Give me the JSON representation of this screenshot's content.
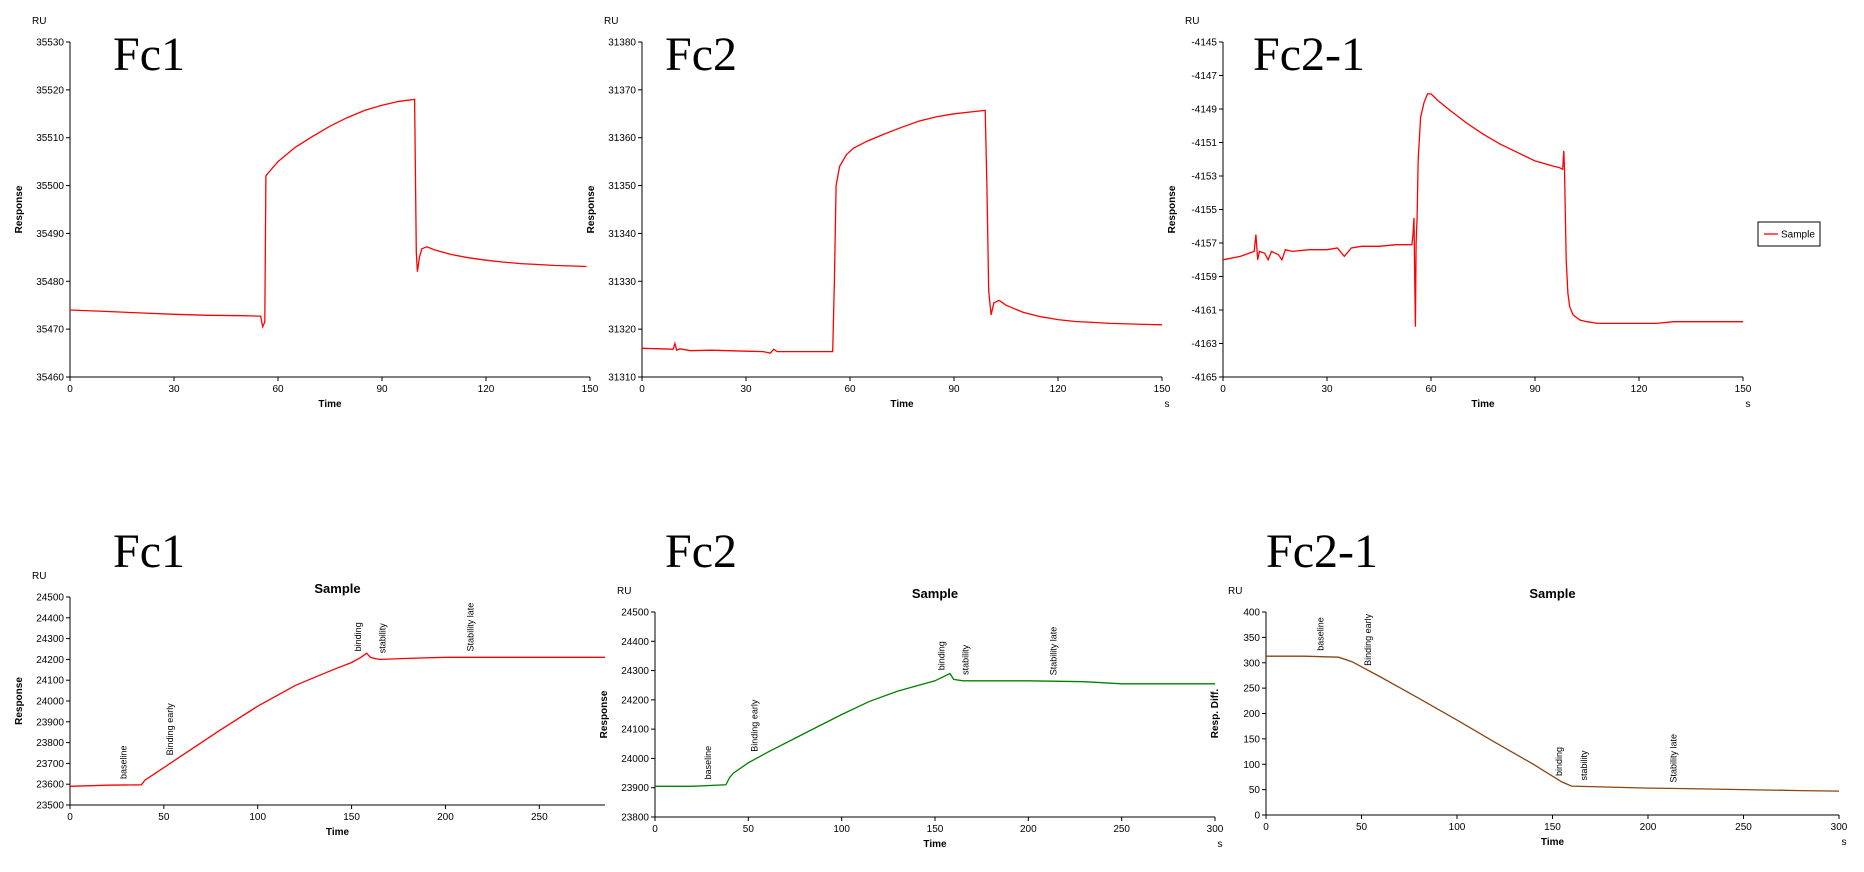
{
  "chart_data": [
    {
      "type": "line",
      "panel_label": "Fc1",
      "unit_label": "RU",
      "xlabel": "Time",
      "ylabel": "Response",
      "xlim": [
        0,
        150
      ],
      "ylim": [
        35460,
        35530
      ],
      "xticks": [
        0,
        30,
        60,
        90,
        120,
        150
      ],
      "yticks": [
        35460,
        35470,
        35480,
        35490,
        35500,
        35510,
        35520,
        35530
      ],
      "color": "#ff0000",
      "series": [
        {
          "x": [
            0,
            10,
            20,
            30,
            40,
            50,
            55,
            55.6,
            56.2,
            56.5,
            57,
            60,
            65,
            70,
            75,
            80,
            85,
            90,
            95,
            99.4,
            99.6,
            99.9,
            100.2,
            100.8,
            101.5,
            103,
            105,
            110,
            115,
            120,
            125,
            130,
            135,
            140,
            145,
            149
          ],
          "y": [
            35474,
            35473.7,
            35473.4,
            35473.1,
            35472.9,
            35472.8,
            35472.7,
            35470.5,
            35471.5,
            35502,
            35502.5,
            35505,
            35508,
            35510.3,
            35512.4,
            35514.2,
            35515.7,
            35516.8,
            35517.6,
            35518,
            35505,
            35486,
            35482,
            35485,
            35486.8,
            35487.2,
            35486.6,
            35485.6,
            35484.9,
            35484.4,
            35484,
            35483.7,
            35483.5,
            35483.3,
            35483.2,
            35483.1
          ]
        }
      ]
    },
    {
      "type": "line",
      "panel_label": "Fc2",
      "unit_label": "RU",
      "xlabel": "Time",
      "x_unit": "s",
      "ylabel": "Response",
      "xlim": [
        0,
        150
      ],
      "ylim": [
        31310,
        31380
      ],
      "xticks": [
        0,
        30,
        60,
        90,
        120,
        150
      ],
      "yticks": [
        31310,
        31320,
        31330,
        31340,
        31350,
        31360,
        31370,
        31380
      ],
      "color": "#ff0000",
      "series": [
        {
          "x": [
            0,
            5,
            9,
            9.5,
            10,
            11,
            14,
            20,
            25,
            30,
            35,
            37,
            38,
            39,
            45,
            50,
            55,
            55.5,
            56,
            57,
            59,
            61,
            65,
            70,
            75,
            80,
            85,
            90,
            95,
            99,
            99.5,
            100,
            100.7,
            101.5,
            103,
            105,
            110,
            115,
            120,
            125,
            130,
            135,
            140,
            145,
            150
          ],
          "y": [
            31316,
            31315.9,
            31315.8,
            31317,
            31315.6,
            31315.9,
            31315.5,
            31315.6,
            31315.5,
            31315.4,
            31315.3,
            31315,
            31315.8,
            31315.3,
            31315.3,
            31315.3,
            31315.3,
            31330,
            31350,
            31354,
            31356.5,
            31357.8,
            31359.3,
            31360.8,
            31362.2,
            31363.5,
            31364.4,
            31365,
            31365.4,
            31365.7,
            31350,
            31328,
            31323,
            31325.5,
            31326,
            31325,
            31323.5,
            31322.6,
            31322,
            31321.6,
            31321.4,
            31321.2,
            31321.1,
            31321,
            31320.9
          ]
        }
      ]
    },
    {
      "type": "line",
      "panel_label": "Fc2-1",
      "unit_label": "RU",
      "xlabel": "Time",
      "x_unit": "s",
      "ylabel": "Response",
      "xlim": [
        0,
        150
      ],
      "ylim": [
        -4165,
        -4145
      ],
      "xticks": [
        0,
        30,
        60,
        90,
        120,
        150
      ],
      "yticks": [
        -4165,
        -4163,
        -4161,
        -4159,
        -4157,
        -4155,
        -4153,
        -4151,
        -4149,
        -4147,
        -4145
      ],
      "legend": {
        "label": "Sample",
        "position": "right"
      },
      "color": "#ff0000",
      "series": [
        {
          "name": "Sample",
          "x": [
            0,
            5,
            9,
            9.5,
            10,
            10.5,
            12,
            13,
            14,
            16,
            17,
            18,
            20,
            25,
            30,
            33,
            35,
            37,
            40,
            45,
            50,
            54.5,
            54.8,
            55.1,
            55.3,
            55.5,
            55.7,
            56,
            56.3,
            57,
            58,
            59,
            60,
            62,
            65,
            70,
            75,
            80,
            85,
            90,
            95,
            97,
            98,
            98.3,
            98.5,
            99,
            99.5,
            100,
            101,
            103,
            105,
            108,
            110,
            115,
            120,
            125,
            130,
            135,
            140,
            145,
            150
          ],
          "y": [
            -4158,
            -4157.8,
            -4157.5,
            -4156.5,
            -4158,
            -4157.5,
            -4157.6,
            -4158,
            -4157.5,
            -4157.7,
            -4158,
            -4157.4,
            -4157.5,
            -4157.4,
            -4157.4,
            -4157.3,
            -4157.8,
            -4157.3,
            -4157.2,
            -4157.2,
            -4157.1,
            -4157.1,
            -4156.5,
            -4155.5,
            -4159,
            -4162,
            -4157,
            -4155.5,
            -4152,
            -4149.5,
            -4148.6,
            -4148.1,
            -4148.1,
            -4148.5,
            -4149,
            -4149.8,
            -4150.5,
            -4151.1,
            -4151.6,
            -4152.1,
            -4152.4,
            -4152.5,
            -4152.6,
            -4151.5,
            -4152.6,
            -4158,
            -4160,
            -4160.8,
            -4161.3,
            -4161.6,
            -4161.7,
            -4161.8,
            -4161.8,
            -4161.8,
            -4161.8,
            -4161.8,
            -4161.7,
            -4161.7,
            -4161.7,
            -4161.7,
            -4161.7
          ]
        }
      ]
    },
    {
      "type": "line",
      "panel_label": "Fc1",
      "title": "Sample",
      "unit_label": "RU",
      "xlabel": "Time",
      "ylabel": "Response",
      "xlim": [
        0,
        285
      ],
      "ylim": [
        23500,
        24500
      ],
      "xticks": [
        0,
        50,
        100,
        150,
        200,
        250
      ],
      "yticks": [
        23500,
        23600,
        23700,
        23800,
        23900,
        24000,
        24100,
        24200,
        24300,
        24400,
        24500
      ],
      "annotations": [
        {
          "text": "baseline",
          "x": 30
        },
        {
          "text": "Binding early",
          "x": 55
        },
        {
          "text": "binding",
          "x": 155
        },
        {
          "text": "stability",
          "x": 168
        },
        {
          "text": "Stability late",
          "x": 215
        }
      ],
      "color": "#ff0000",
      "series": [
        {
          "x": [
            0,
            20,
            38,
            40,
            45,
            60,
            80,
            100,
            120,
            140,
            150,
            155,
            158,
            160,
            162,
            165,
            180,
            200,
            250,
            285
          ],
          "y": [
            23590,
            23595,
            23597,
            23620,
            23650,
            23740,
            23860,
            23975,
            24075,
            24150,
            24185,
            24210,
            24230,
            24210,
            24205,
            24200,
            24205,
            24210,
            24210,
            24210
          ]
        }
      ]
    },
    {
      "type": "line",
      "panel_label": "Fc2",
      "title": "Sample",
      "unit_label": "RU",
      "xlabel": "Time",
      "x_unit": "s",
      "ylabel": "Response",
      "xlim": [
        0,
        300
      ],
      "ylim": [
        23800,
        24500
      ],
      "xticks": [
        0,
        50,
        100,
        150,
        200,
        250,
        300
      ],
      "yticks": [
        23800,
        23900,
        24000,
        24100,
        24200,
        24300,
        24400,
        24500
      ],
      "annotations": [
        {
          "text": "baseline",
          "x": 30
        },
        {
          "text": "Binding early",
          "x": 55
        },
        {
          "text": "binding",
          "x": 155
        },
        {
          "text": "stability",
          "x": 168
        },
        {
          "text": "Stability late",
          "x": 215
        }
      ],
      "color": "#008000",
      "series": [
        {
          "x": [
            0,
            20,
            38,
            40,
            42,
            50,
            60,
            80,
            100,
            115,
            130,
            150,
            158,
            160,
            165,
            180,
            200,
            230,
            250,
            300
          ],
          "y": [
            23905,
            23905,
            23910,
            23935,
            23950,
            23985,
            24020,
            24085,
            24150,
            24195,
            24230,
            24265,
            24290,
            24270,
            24265,
            24265,
            24265,
            24262,
            24255,
            24255
          ]
        }
      ]
    },
    {
      "type": "line",
      "panel_label": "Fc2-1",
      "title": "Sample",
      "unit_label": "RU",
      "xlabel": "Time",
      "x_unit": "s",
      "ylabel": "Resp. Diff.",
      "xlim": [
        0,
        300
      ],
      "ylim": [
        0,
        400
      ],
      "xticks": [
        0,
        50,
        100,
        150,
        200,
        250,
        300
      ],
      "yticks": [
        0,
        50,
        100,
        150,
        200,
        250,
        300,
        350,
        400
      ],
      "annotations": [
        {
          "text": "baseline",
          "x": 30
        },
        {
          "text": "Binding early",
          "x": 55
        },
        {
          "text": "binding",
          "x": 155
        },
        {
          "text": "stability",
          "x": 168
        },
        {
          "text": "Stability late",
          "x": 215
        }
      ],
      "color": "#8b4513",
      "series": [
        {
          "x": [
            0,
            20,
            38,
            45,
            60,
            80,
            100,
            120,
            140,
            155,
            160,
            180,
            200,
            220,
            250,
            280,
            300
          ],
          "y": [
            313,
            313,
            311,
            302,
            272,
            230,
            187,
            143,
            100,
            65,
            57,
            55,
            53,
            52,
            50,
            48,
            47
          ]
        }
      ]
    }
  ]
}
